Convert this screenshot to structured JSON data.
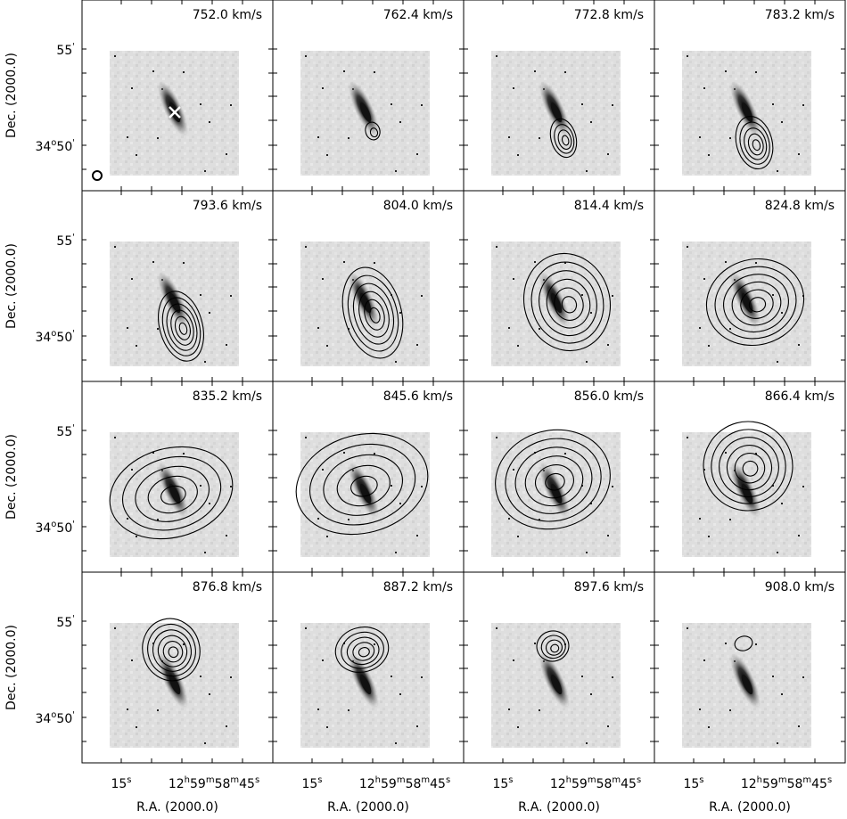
{
  "panels": [
    {
      "velocity": "752.0 km/s"
    },
    {
      "velocity": "762.4 km/s"
    },
    {
      "velocity": "772.8 km/s"
    },
    {
      "velocity": "783.2 km/s"
    },
    {
      "velocity": "793.6 km/s"
    },
    {
      "velocity": "804.0 km/s"
    },
    {
      "velocity": "814.4 km/s"
    },
    {
      "velocity": "824.8 km/s"
    },
    {
      "velocity": "835.2 km/s"
    },
    {
      "velocity": "845.6 km/s"
    },
    {
      "velocity": "856.0 km/s"
    },
    {
      "velocity": "866.4 km/s"
    },
    {
      "velocity": "876.8 km/s"
    },
    {
      "velocity": "887.2 km/s"
    },
    {
      "velocity": "897.6 km/s"
    },
    {
      "velocity": "908.0 km/s"
    }
  ],
  "y_axis": {
    "label": "Dec. (2000.0)",
    "ticks": [
      [
        "55",
        "'"
      ],
      [
        "34",
        "o",
        "50",
        "'"
      ]
    ]
  },
  "x_axis": {
    "label": "R.A. (2000.0)",
    "ticks": [
      [
        "15",
        "s"
      ],
      [
        "12",
        "h",
        "59",
        "m",
        "58",
        "m",
        "45",
        "s"
      ]
    ]
  }
}
